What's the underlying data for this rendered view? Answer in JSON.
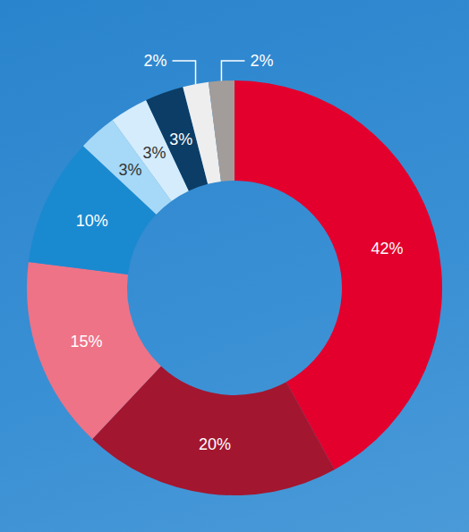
{
  "chart_data": {
    "type": "pie",
    "values": [
      42,
      20,
      15,
      10,
      3,
      3,
      3,
      2,
      2
    ],
    "value_labels": [
      "42%",
      "20%",
      "15%",
      "10%",
      "3%",
      "3%",
      "3%",
      "2%",
      "2%"
    ],
    "colors": [
      "#e3002d",
      "#a3162f",
      "#ee7387",
      "#1a8ad0",
      "#a6d9f7",
      "#d4ecfb",
      "#0b3d66",
      "#eeeeee",
      "#a29d9b"
    ],
    "data_labels": true
  }
}
